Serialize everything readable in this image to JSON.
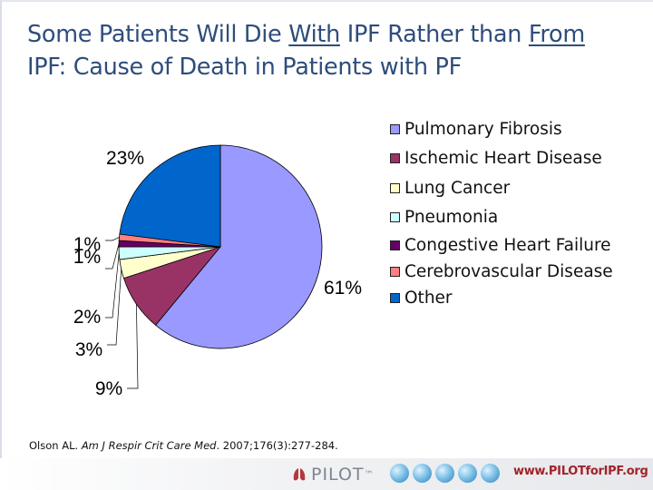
{
  "slide": {
    "title_parts": {
      "p1": "Some Patients Will Die ",
      "p2": "With",
      "p3": " IPF Rather than ",
      "p4": "From",
      "p5": "IPF: Cause of Death in Patients with PF"
    },
    "citation": {
      "author": "Olson AL. ",
      "journal": "Am J Respir Crit Care Med",
      "rest": ". 2007;176(3):277-284."
    },
    "footer": {
      "logo_text": "PILOT",
      "trademark": "™",
      "url": "www.PILOTforIPF.org"
    }
  },
  "chart_data": {
    "type": "pie",
    "series": [
      {
        "name": "Pulmonary Fibrosis",
        "value": 61,
        "label": "61%",
        "color": "#9999ff"
      },
      {
        "name": "Ischemic Heart Disease",
        "value": 9,
        "label": "9%",
        "color": "#993366"
      },
      {
        "name": "Lung Cancer",
        "value": 3,
        "label": "3%",
        "color": "#ffffcc"
      },
      {
        "name": "Pneumonia",
        "value": 2,
        "label": "2%",
        "color": "#ccffff"
      },
      {
        "name": "Congestive Heart Failure",
        "value": 1,
        "label": "1%",
        "color": "#660066"
      },
      {
        "name": "Cerebrovascular Disease",
        "value": 1,
        "label": "1%",
        "color": "#ff8080"
      },
      {
        "name": "Other",
        "value": 23,
        "label": "23%",
        "color": "#0066cc"
      }
    ],
    "legend_position": "right"
  }
}
